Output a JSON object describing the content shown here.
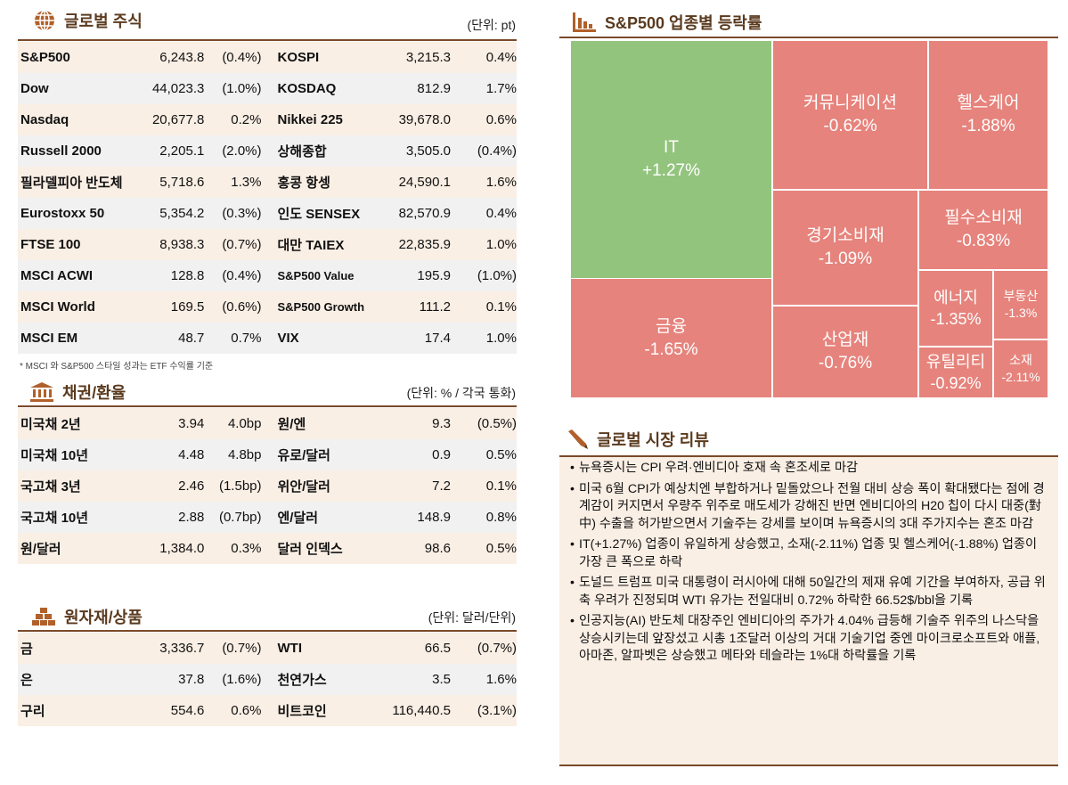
{
  "equity": {
    "title": "글로벌 주식",
    "unit": "(단위: pt)",
    "note": "* MSCI 와 S&P500 스타일 성과는 ETF 수익률 기준",
    "rows": [
      [
        "S&P500",
        "6,243.8",
        "(0.4%)",
        "KOSPI",
        "3,215.3",
        "0.4%"
      ],
      [
        "Dow",
        "44,023.3",
        "(1.0%)",
        "KOSDAQ",
        "812.9",
        "1.7%"
      ],
      [
        "Nasdaq",
        "20,677.8",
        "0.2%",
        "Nikkei 225",
        "39,678.0",
        "0.6%"
      ],
      [
        "Russell 2000",
        "2,205.1",
        "(2.0%)",
        "상해종합",
        "3,505.0",
        "(0.4%)"
      ],
      [
        "필라델피아 반도체",
        "5,718.6",
        "1.3%",
        "홍콩 항셍",
        "24,590.1",
        "1.6%"
      ],
      [
        "Eurostoxx 50",
        "5,354.2",
        "(0.3%)",
        "인도 SENSEX",
        "82,570.9",
        "0.4%"
      ],
      [
        "FTSE 100",
        "8,938.3",
        "(0.7%)",
        "대만 TAIEX",
        "22,835.9",
        "1.0%"
      ],
      [
        "MSCI ACWI",
        "128.8",
        "(0.4%)",
        "S&P500 Value",
        "195.9",
        "(1.0%)"
      ],
      [
        "MSCI World",
        "169.5",
        "(0.6%)",
        "S&P500 Growth",
        "111.2",
        "0.1%"
      ],
      [
        "MSCI EM",
        "48.7",
        "0.7%",
        "VIX",
        "17.4",
        "1.0%"
      ]
    ]
  },
  "bonds": {
    "title": "채권/환율",
    "unit": "(단위: % / 각국 통화)",
    "rows": [
      [
        "미국채 2년",
        "3.94",
        "4.0bp",
        "원/엔",
        "9.3",
        "(0.5%)"
      ],
      [
        "미국채 10년",
        "4.48",
        "4.8bp",
        "유로/달러",
        "0.9",
        "0.5%"
      ],
      [
        "국고채 3년",
        "2.46",
        "(1.5bp)",
        "위안/달러",
        "7.2",
        "0.1%"
      ],
      [
        "국고채 10년",
        "2.88",
        "(0.7bp)",
        "엔/달러",
        "148.9",
        "0.8%"
      ],
      [
        "원/달러",
        "1,384.0",
        "0.3%",
        "달러 인덱스",
        "98.6",
        "0.5%"
      ]
    ]
  },
  "commodities": {
    "title": "원자재/상품",
    "unit": "(단위: 달러/단위)",
    "rows": [
      [
        "금",
        "3,336.7",
        "(0.7%)",
        "WTI",
        "66.5",
        "(0.7%)"
      ],
      [
        "은",
        "37.8",
        "(1.6%)",
        "천연가스",
        "3.5",
        "1.6%"
      ],
      [
        "구리",
        "554.6",
        "0.6%",
        "비트코인",
        "116,440.5",
        "(3.1%)"
      ]
    ]
  },
  "sectors": {
    "title": "S&P500 업종별 등락률",
    "colors": {
      "up": "#93c47d",
      "down": "#e6837c"
    },
    "items": [
      {
        "name": "IT",
        "value": "+1.27%"
      },
      {
        "name": "금융",
        "value": "-1.65%"
      },
      {
        "name": "커뮤니케이션",
        "value": "-0.62%"
      },
      {
        "name": "헬스케어",
        "value": "-1.88%"
      },
      {
        "name": "경기소비재",
        "value": "-1.09%"
      },
      {
        "name": "필수소비재",
        "value": "-0.83%"
      },
      {
        "name": "산업재",
        "value": "-0.76%"
      },
      {
        "name": "에너지",
        "value": "-1.35%"
      },
      {
        "name": "부동산",
        "value": "-1.3%"
      },
      {
        "name": "유틸리티",
        "value": "-0.92%"
      },
      {
        "name": "소재",
        "value": "-2.11%"
      }
    ]
  },
  "review": {
    "title": "글로벌 시장 리뷰",
    "bullets": [
      "뉴욕증시는 CPI 우려·엔비디아 호재 속 혼조세로 마감",
      "미국 6월 CPI가 예상치엔 부합하거나 밑돌았으나 전월 대비 상승 폭이 확대됐다는 점에 경계감이 커지면서 우량주 위주로 매도세가 강해진 반면 엔비디아의 H20 칩이 다시 대중(對中) 수출을 허가받으면서 기술주는 강세를 보이며 뉴욕증시의 3대 주가지수는 혼조 마감",
      "IT(+1.27%) 업종이 유일하게 상승했고, 소재(-2.11%) 업종 및 헬스케어(-1.88%) 업종이 가장 큰 폭으로 하락",
      "도널드 트럼프 미국 대통령이 러시아에 대해 50일간의 제재 유예 기간을 부여하자, 공급 위축 우려가 진정되며 WTI 유가는 전일대비 0.72% 하락한 66.52$/bbl을 기록",
      "인공지능(AI) 반도체 대장주인 엔비디아의 주가가 4.04% 급등해 기술주 위주의 나스닥을 상승시키는데 앞장섰고 시총 1조달러 이상의 거대 기술기업 중엔 마이크로소프트와 애플, 아마존, 알파벳은 상승했고 메타와 테슬라는 1%대 하락률을 기록"
    ]
  }
}
